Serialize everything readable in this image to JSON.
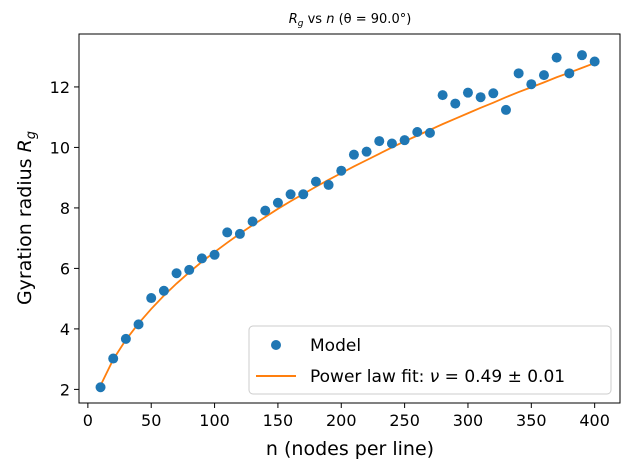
{
  "chart_data": {
    "type": "scatter",
    "title": "R_g vs n (θ = 90.0°)",
    "title_parts": {
      "r": "R",
      "g": "g",
      "vs": " vs ",
      "n": "n",
      "theta": " (θ = 90.0°)"
    },
    "xlabel": "n (nodes per line)",
    "ylabel": "Gyration radius ",
    "ylabel_symbol": "R",
    "ylabel_subscript": "g",
    "xlim": [
      -7,
      420
    ],
    "ylim": [
      1.55,
      13.75
    ],
    "x_ticks": [
      0,
      50,
      100,
      150,
      200,
      250,
      300,
      350,
      400
    ],
    "x_tick_labels": [
      "0",
      "50",
      "100",
      "150",
      "200",
      "250",
      "300",
      "350",
      "400"
    ],
    "y_ticks": [
      2,
      4,
      6,
      8,
      10,
      12
    ],
    "y_tick_labels": [
      "2",
      "4",
      "6",
      "8",
      "10",
      "12"
    ],
    "grid": false,
    "legend_position": "bottom-right",
    "series": [
      {
        "name": "Model",
        "kind": "scatter",
        "color": "#1f77b4",
        "x": [
          10,
          20,
          30,
          40,
          50,
          60,
          70,
          80,
          90,
          100,
          110,
          120,
          130,
          140,
          150,
          160,
          170,
          180,
          190,
          200,
          210,
          220,
          230,
          240,
          250,
          260,
          270,
          280,
          290,
          300,
          310,
          320,
          330,
          340,
          350,
          360,
          370,
          380,
          390,
          400
        ],
        "y": [
          2.07,
          3.02,
          3.67,
          4.15,
          5.02,
          5.26,
          5.84,
          5.95,
          6.33,
          6.45,
          7.19,
          7.14,
          7.55,
          7.91,
          8.17,
          8.45,
          8.45,
          8.87,
          8.76,
          9.23,
          9.76,
          9.86,
          10.21,
          10.13,
          10.24,
          10.51,
          10.48,
          11.73,
          11.45,
          11.81,
          11.66,
          11.79,
          11.24,
          12.45,
          12.09,
          12.39,
          12.97,
          12.45,
          13.05,
          12.84
        ]
      },
      {
        "name": "Power law fit: ν = 0.49 ± 0.01",
        "kind": "line",
        "color": "#ff7f0e",
        "equation": "y = 0.6892 · x^0.49",
        "x": [
          10,
          20,
          30,
          40,
          50,
          60,
          70,
          80,
          90,
          100,
          110,
          120,
          130,
          140,
          150,
          160,
          170,
          180,
          190,
          200,
          210,
          220,
          230,
          240,
          250,
          260,
          270,
          280,
          290,
          300,
          310,
          320,
          330,
          340,
          350,
          360,
          370,
          380,
          390,
          400
        ],
        "y": [
          2.13,
          2.99,
          3.64,
          4.18,
          4.66,
          5.1,
          5.5,
          5.87,
          6.22,
          6.54,
          6.85,
          7.15,
          7.43,
          7.7,
          7.97,
          8.22,
          8.46,
          8.7,
          8.93,
          9.15,
          9.37,
          9.58,
          9.79,
          10.0,
          10.2,
          10.39,
          10.58,
          10.77,
          10.95,
          11.13,
          11.31,
          11.48,
          11.66,
          11.83,
          11.99,
          12.15,
          12.32,
          12.47,
          12.63,
          12.79
        ]
      }
    ],
    "legend": [
      {
        "label": "Model",
        "marker": "circle",
        "color": "#1f77b4"
      },
      {
        "label": "Power law fit: ",
        "symbol": "ν",
        "suffix": " = 0.49 ± 0.01",
        "marker": "line",
        "color": "#ff7f0e"
      }
    ]
  }
}
